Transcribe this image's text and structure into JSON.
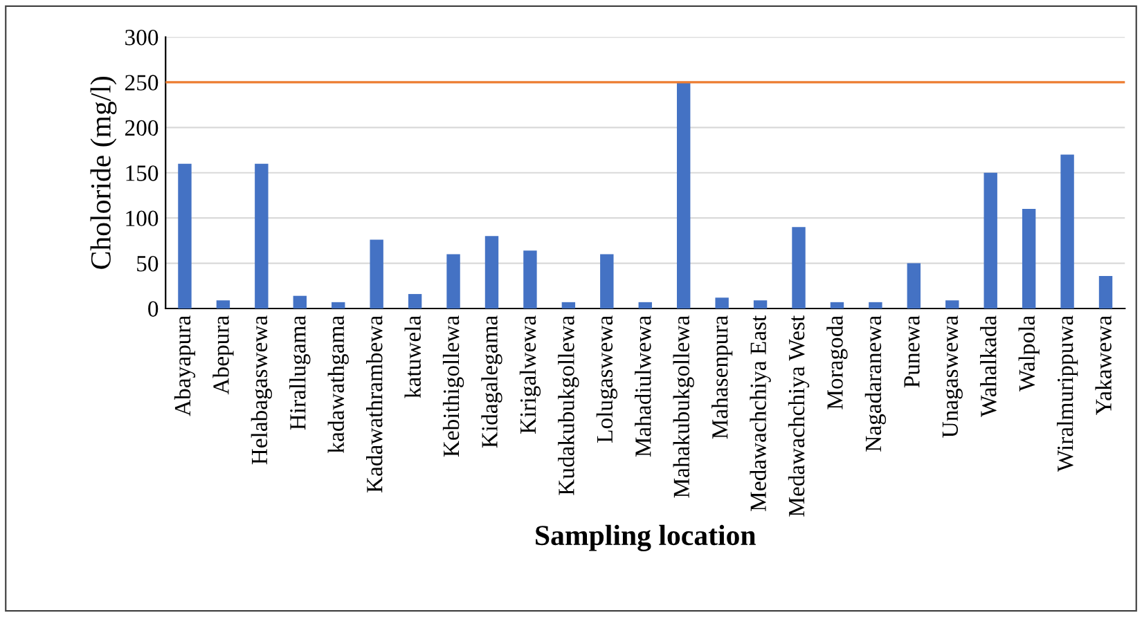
{
  "chart_data": {
    "type": "bar",
    "xlabel": "Sampling location",
    "ylabel": "Choloride (mg/l)",
    "categories": [
      "Abayapura",
      "Abepura",
      "Helabagaswewa",
      "Hirallugama",
      "kadawathgama",
      "Kadawathrambewa",
      "katuwela",
      "Kebithigollewa",
      "Kidagalegama",
      "Kirigalwewa",
      "Kudakubukgollewa",
      "Lolugaswewa",
      "Mahadiulwewa",
      "Mahakubukgollewa",
      "Mahasenpura",
      "Medawachchiya East",
      "Medawachchiya West",
      "Moragoda",
      "Nagadaranewa",
      "Punewa",
      "Unagaswewa",
      "Wahalkada",
      "Walpola",
      "Wiralmurippuwa",
      "Yakawewa"
    ],
    "values": [
      160,
      9,
      160,
      14,
      7,
      76,
      16,
      60,
      80,
      64,
      7,
      60,
      7,
      250,
      12,
      9,
      90,
      7,
      7,
      50,
      9,
      150,
      110,
      170,
      36
    ],
    "color": "#4472c4",
    "ylim": [
      0,
      300
    ],
    "yticks": [
      0,
      50,
      100,
      150,
      200,
      250,
      300
    ],
    "grid": "y",
    "ref_lines": [
      {
        "axis": "y",
        "value": 250,
        "color": "#ed7d31"
      }
    ]
  }
}
